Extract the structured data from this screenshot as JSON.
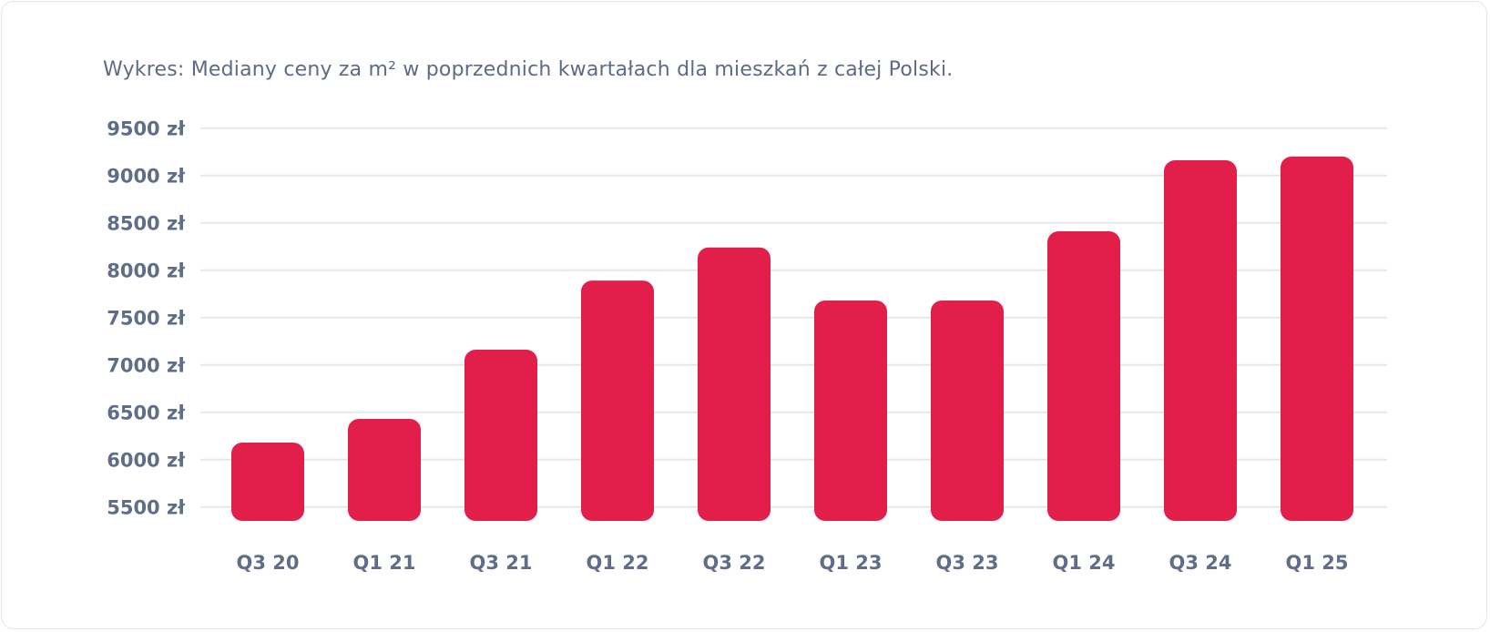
{
  "chart_data": {
    "type": "bar",
    "title": "Wykres:  Mediany ceny za m² w poprzednich kwartałach dla mieszkań z całej Polski.",
    "categories": [
      "Q3 20",
      "Q1 21",
      "Q3 21",
      "Q1 22",
      "Q3 22",
      "Q1 23",
      "Q3 23",
      "Q1 24",
      "Q3 24",
      "Q1 25"
    ],
    "values": [
      6180,
      6430,
      7160,
      7890,
      8240,
      7680,
      7680,
      8410,
      9160,
      9200
    ],
    "yticks": [
      9500,
      9000,
      8500,
      8000,
      7500,
      7000,
      6500,
      6000,
      5500
    ],
    "ytick_labels": [
      "9500 zł",
      "9000 zł",
      "8500 zł",
      "8000 zł",
      "7500 zł",
      "7000 zł",
      "6500 zł",
      "6000 zł",
      "5500 zł"
    ],
    "ylim": [
      5500,
      9500
    ],
    "xlabel": "",
    "ylabel": "",
    "grid": true,
    "bar_color": "#e11f4a",
    "grid_color": "#e6e7ec",
    "text_color": "#5f6e88"
  }
}
